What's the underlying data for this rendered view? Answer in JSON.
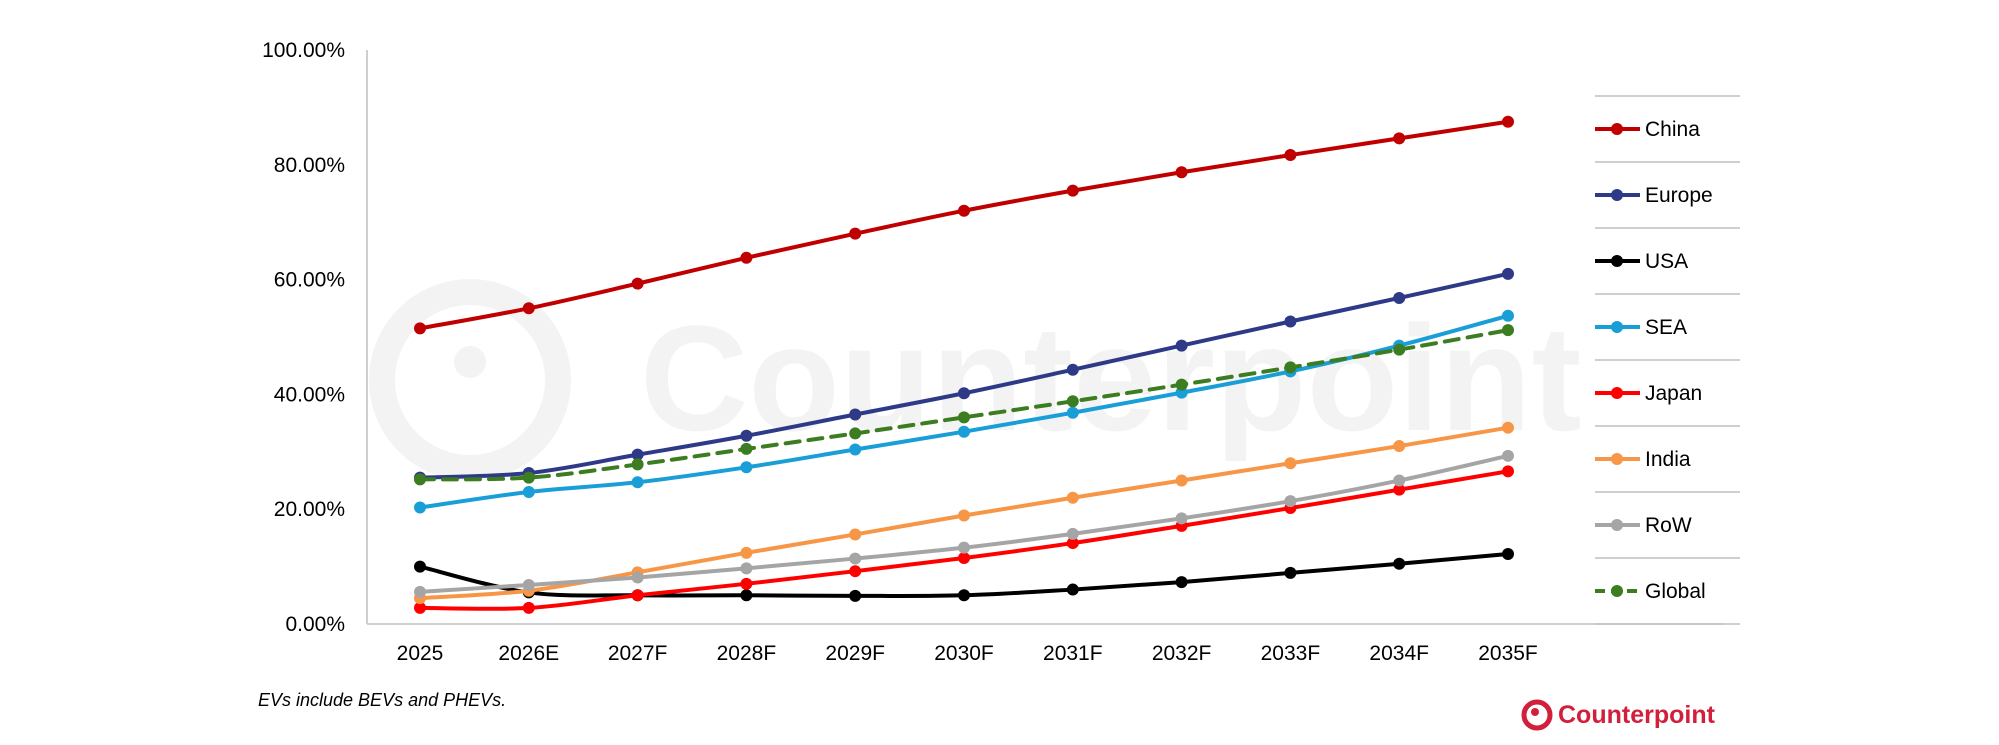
{
  "chart_data": {
    "type": "line",
    "x": [
      "2025",
      "2026E",
      "2027F",
      "2028F",
      "2029F",
      "2030F",
      "2031F",
      "2032F",
      "2033F",
      "2034F",
      "2035F"
    ],
    "ylim": [
      0,
      100
    ],
    "yticks": [
      "0.00%",
      "20.00%",
      "40.00%",
      "60.00%",
      "80.00%",
      "100.00%"
    ],
    "ytick_values": [
      0,
      20,
      40,
      60,
      80,
      100
    ],
    "grid": false,
    "legend_position": "right",
    "series": [
      {
        "name": "China",
        "color": "#C00000",
        "dashed": false,
        "values": [
          51.5,
          55.0,
          59.3,
          63.8,
          68.0,
          72.0,
          75.5,
          78.7,
          81.7,
          84.6,
          87.5
        ]
      },
      {
        "name": "Europe",
        "color": "#2E3A87",
        "dashed": false,
        "values": [
          25.5,
          26.3,
          29.5,
          32.8,
          36.5,
          40.2,
          44.3,
          48.5,
          52.7,
          56.8,
          61.0
        ]
      },
      {
        "name": "USA",
        "color": "#000000",
        "dashed": false,
        "values": [
          10.0,
          5.5,
          5.0,
          5.0,
          4.9,
          5.0,
          6.0,
          7.3,
          8.9,
          10.5,
          12.2
        ]
      },
      {
        "name": "SEA",
        "color": "#1A9ED8",
        "dashed": false,
        "values": [
          20.3,
          23.0,
          24.7,
          27.3,
          30.4,
          33.5,
          36.8,
          40.3,
          44.0,
          48.5,
          53.7
        ]
      },
      {
        "name": "Japan",
        "color": "#FF0000",
        "dashed": false,
        "values": [
          2.8,
          2.8,
          5.0,
          7.0,
          9.2,
          11.5,
          14.1,
          17.1,
          20.2,
          23.4,
          26.6
        ]
      },
      {
        "name": "India",
        "color": "#F79646",
        "dashed": false,
        "values": [
          4.5,
          5.8,
          9.0,
          12.4,
          15.6,
          18.9,
          22.0,
          25.0,
          28.0,
          31.0,
          34.2
        ]
      },
      {
        "name": "RoW",
        "color": "#A5A5A5",
        "dashed": false,
        "values": [
          5.6,
          6.8,
          8.1,
          9.7,
          11.4,
          13.3,
          15.7,
          18.4,
          21.4,
          25.0,
          29.3
        ]
      },
      {
        "name": "Global",
        "color": "#3C7D22",
        "dashed": true,
        "values": [
          25.2,
          25.5,
          27.8,
          30.5,
          33.2,
          36.0,
          38.8,
          41.7,
          44.7,
          47.8,
          51.2
        ]
      }
    ]
  },
  "footnote": "EVs include BEVs and PHEVs.",
  "logo": {
    "text": "Counterpoint",
    "color": "#D21F3C"
  },
  "watermark": {
    "text": "Counterpoint",
    "color": "#F2F2F2"
  }
}
